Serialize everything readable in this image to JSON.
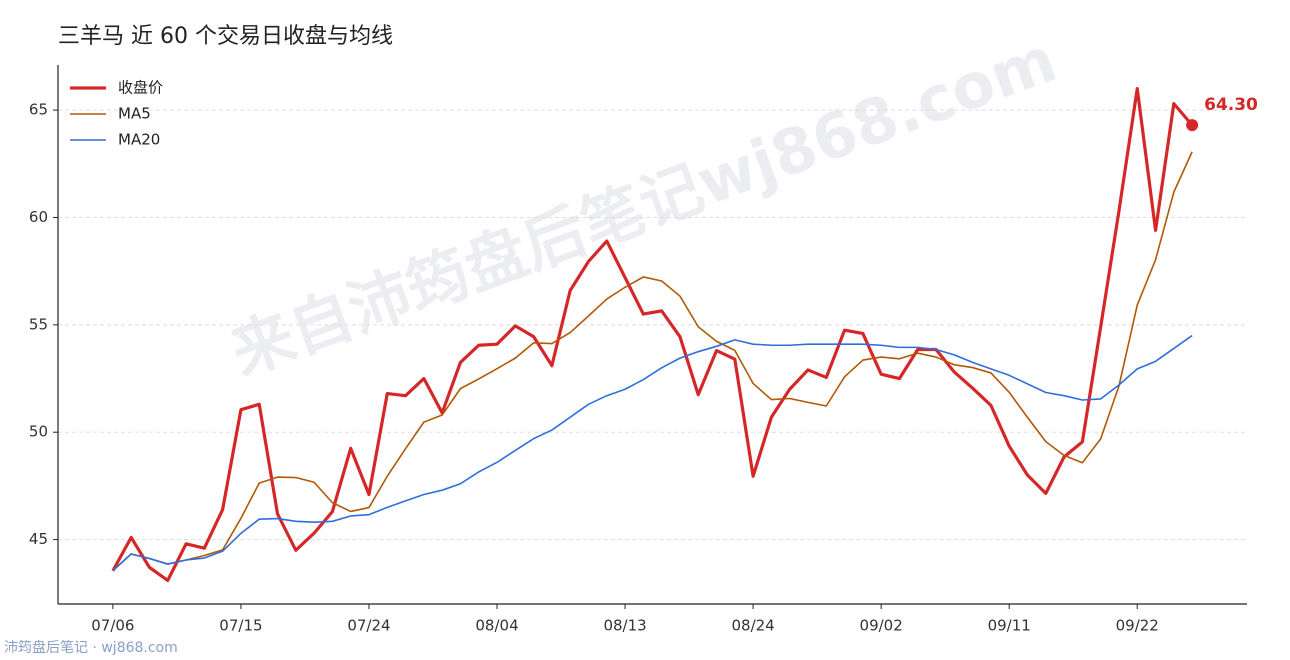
{
  "chart_data": {
    "type": "line",
    "title": "三羊马 近 60 个交易日收盘与均线",
    "watermark": "来自沛筠盘后笔记wj868.com",
    "footer": "沛筠盘后笔记 · wj868.com",
    "categories": [
      "07/06",
      null,
      null,
      null,
      null,
      null,
      null,
      "07/15",
      null,
      null,
      null,
      null,
      null,
      null,
      "07/24",
      null,
      null,
      null,
      null,
      null,
      null,
      "08/04",
      null,
      null,
      null,
      null,
      null,
      null,
      "08/13",
      null,
      null,
      null,
      null,
      null,
      null,
      "08/24",
      null,
      null,
      null,
      null,
      null,
      null,
      "09/02",
      null,
      null,
      null,
      null,
      null,
      null,
      "09/11",
      null,
      null,
      null,
      null,
      null,
      null,
      "09/22",
      null,
      null,
      null
    ],
    "series": [
      {
        "name": "收盘价",
        "color": "#d62728",
        "width": 3.2,
        "values": [
          43.55,
          45.1,
          43.7,
          43.1,
          44.8,
          44.6,
          46.4,
          51.05,
          51.3,
          46.2,
          44.5,
          45.3,
          46.3,
          49.25,
          47.1,
          51.8,
          51.7,
          52.5,
          50.9,
          53.25,
          54.05,
          54.1,
          54.95,
          54.45,
          53.1,
          56.6,
          57.95,
          58.9,
          57.2,
          55.5,
          55.65,
          54.45,
          51.75,
          53.8,
          53.4,
          47.95,
          50.7,
          52.0,
          52.9,
          52.55,
          54.75,
          54.6,
          52.7,
          52.5,
          53.85,
          53.85,
          52.8,
          52.05,
          51.25,
          49.35,
          48.0,
          47.15,
          48.85,
          49.55,
          54.9,
          60.3,
          66.0,
          59.4,
          65.3,
          64.3
        ],
        "value_labels": [
          null,
          null,
          null,
          null,
          null,
          null,
          null,
          null,
          null,
          null,
          null,
          null,
          null,
          null,
          null,
          null,
          null,
          null,
          null,
          null,
          null,
          null,
          null,
          null,
          null,
          null,
          null,
          null,
          null,
          null,
          null,
          null,
          null,
          null,
          null,
          null,
          null,
          null,
          null,
          null,
          null,
          null,
          null,
          null,
          null,
          null,
          null,
          null,
          null,
          null,
          null,
          null,
          null,
          null,
          null,
          null,
          null,
          null,
          null,
          "64.30"
        ]
      },
      {
        "name": "MA5",
        "color": "#b35806",
        "width": 1.6,
        "values": [
          43.55,
          44.33,
          44.12,
          43.86,
          44.05,
          44.26,
          44.52,
          45.99,
          47.63,
          47.91,
          47.89,
          47.67,
          46.72,
          46.31,
          46.49,
          47.95,
          49.23,
          50.47,
          50.8,
          52.03,
          52.48,
          52.96,
          53.45,
          54.16,
          54.13,
          54.64,
          55.41,
          56.2,
          56.75,
          57.23,
          57.04,
          56.34,
          54.91,
          54.23,
          53.81,
          52.27,
          51.52,
          51.57,
          51.39,
          51.22,
          52.58,
          53.36,
          53.5,
          53.42,
          53.68,
          53.5,
          53.14,
          53.01,
          52.76,
          51.86,
          50.69,
          49.56,
          48.92,
          48.58,
          49.69,
          52.15,
          55.92,
          58.03,
          61.18,
          63.06
        ]
      },
      {
        "name": "MA20",
        "color": "#2f6fdb",
        "width": 1.6,
        "values": [
          43.55,
          44.33,
          44.12,
          43.86,
          44.05,
          44.14,
          44.46,
          45.29,
          45.95,
          45.98,
          45.85,
          45.81,
          45.85,
          46.1,
          46.16,
          46.5,
          46.8,
          47.1,
          47.3,
          47.6,
          48.15,
          48.6,
          49.15,
          49.7,
          50.1,
          50.7,
          51.3,
          51.7,
          52.0,
          52.45,
          53.0,
          53.45,
          53.75,
          54.0,
          54.3,
          54.1,
          54.05,
          54.05,
          54.1,
          54.1,
          54.1,
          54.1,
          54.05,
          53.95,
          53.95,
          53.85,
          53.6,
          53.25,
          52.95,
          52.65,
          52.25,
          51.85,
          51.7,
          51.5,
          51.55,
          52.2,
          52.95,
          53.3,
          53.9,
          54.5
        ]
      }
    ],
    "ylim": [
      42,
      67.1
    ],
    "yticks": [
      45,
      50,
      55,
      60,
      65
    ],
    "grid": true,
    "legend": "upper left"
  }
}
